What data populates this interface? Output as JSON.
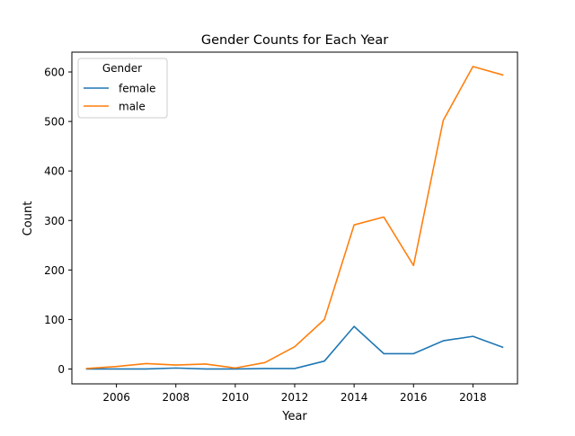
{
  "chart_data": {
    "type": "line",
    "title": "Gender Counts for Each Year",
    "xlabel": "Year",
    "ylabel": "Count",
    "xlim": [
      2004.5,
      2019.5
    ],
    "ylim": [
      -30,
      640
    ],
    "x_ticks": [
      2006,
      2008,
      2010,
      2012,
      2014,
      2016,
      2018
    ],
    "y_ticks": [
      0,
      100,
      200,
      300,
      400,
      500,
      600
    ],
    "grid": false,
    "legend": {
      "title": "Gender",
      "placement": "top-left"
    },
    "x": [
      2005,
      2006,
      2007,
      2008,
      2009,
      2010,
      2011,
      2012,
      2013,
      2014,
      2015,
      2016,
      2017,
      2018,
      2019
    ],
    "series": [
      {
        "name": "female",
        "color": "#1f77b4",
        "values": [
          0,
          0,
          0,
          2,
          0,
          0,
          1,
          1,
          16,
          86,
          31,
          31,
          57,
          66,
          44
        ]
      },
      {
        "name": "male",
        "color": "#ff7f0e",
        "values": [
          1,
          5,
          11,
          8,
          10,
          2,
          13,
          45,
          100,
          291,
          307,
          209,
          502,
          611,
          594
        ]
      }
    ]
  }
}
